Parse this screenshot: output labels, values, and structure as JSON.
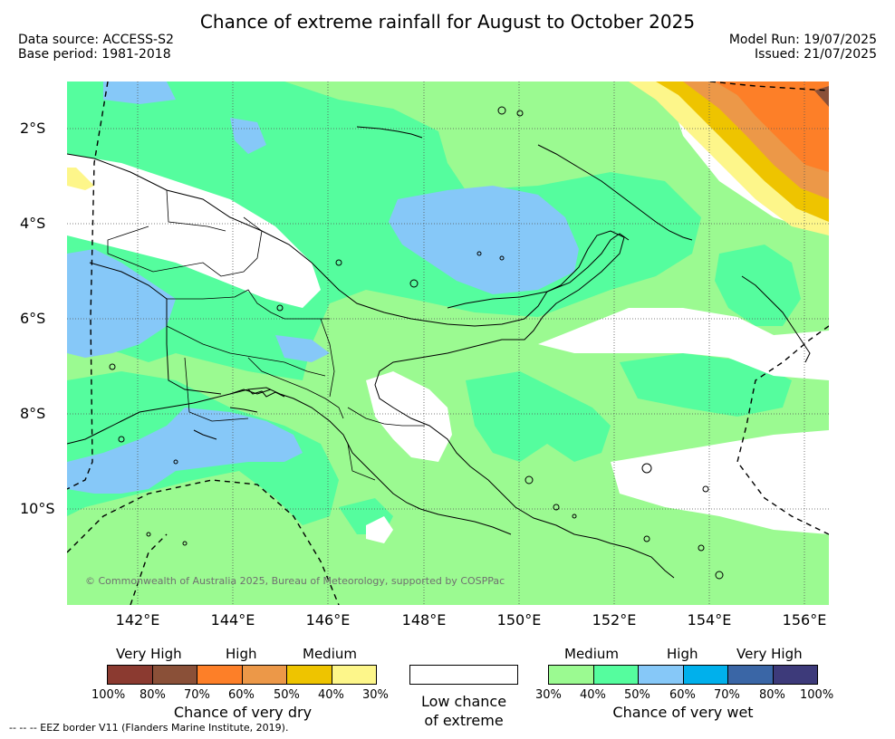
{
  "title": "Chance of extreme rainfall for August to October 2025",
  "meta": {
    "data_source": "Data source: ACCESS-S2",
    "base_period": "Base period: 1981-2018",
    "model_run": "Model Run: 19/07/2025",
    "issued": "Issued: 21/07/2025"
  },
  "map": {
    "copyright": "© Commonwealth of Australia 2025, Bureau of Meteorology, supported by COSPPac",
    "lat_labels": [
      "2°S",
      "4°S",
      "6°S",
      "8°S",
      "10°S"
    ],
    "lon_labels": [
      "142°E",
      "144°E",
      "146°E",
      "148°E",
      "150°E",
      "152°E",
      "154°E",
      "156°E"
    ],
    "colors": {
      "dry_30_40": "#fdf68a",
      "dry_40_50": "#eec400",
      "dry_50_60": "#ec9848",
      "dry_60_70": "#fd7f28",
      "dry_70_80": "#8a5038",
      "wet_30_40": "#9bfa91",
      "wet_40_50": "#55fd9e",
      "wet_50_60": "#86c8f8",
      "land_outline": "#000000"
    }
  },
  "legend": {
    "dry": {
      "levels": [
        "Very High",
        "High",
        "Medium"
      ],
      "ticks": [
        "100%",
        "80%",
        "70%",
        "60%",
        "50%",
        "40%",
        "30%"
      ],
      "colors": [
        "#8b3a30",
        "#8a5038",
        "#fd7f28",
        "#ec9848",
        "#eec400",
        "#fdf68a"
      ],
      "caption": "Chance of very dry"
    },
    "neutral": {
      "caption_line1": "Low chance",
      "caption_line2": "of extreme"
    },
    "wet": {
      "levels": [
        "Medium",
        "High",
        "Very High"
      ],
      "ticks": [
        "30%",
        "40%",
        "50%",
        "60%",
        "70%",
        "80%",
        "100%"
      ],
      "colors": [
        "#9bfa91",
        "#55fd9e",
        "#86c8f8",
        "#00b0ec",
        "#3a66a6",
        "#3d3a7a"
      ],
      "caption": "Chance of very wet"
    }
  },
  "footnote": "-- -- -- EEZ border V11 (Flanders Marine Institute, 2019)."
}
